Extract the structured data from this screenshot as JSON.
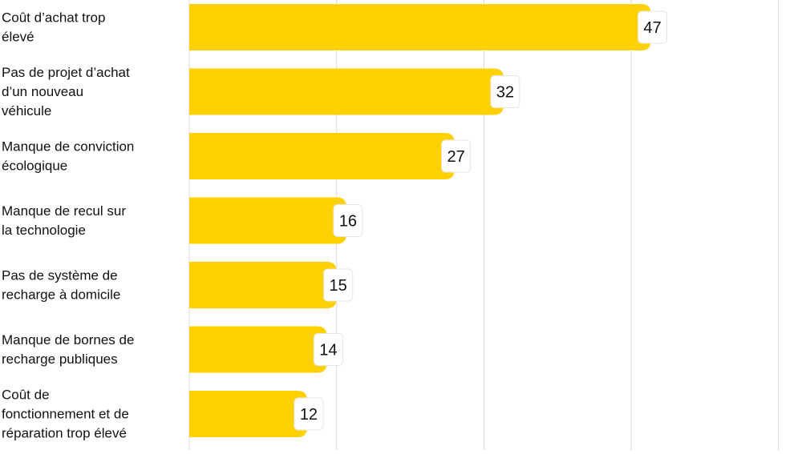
{
  "chart_data": {
    "type": "bar",
    "orientation": "horizontal",
    "categories": [
      [
        "Coût d’achat trop",
        "élevé"
      ],
      [
        "Pas de projet d’achat",
        "d’un nouveau",
        "véhicule"
      ],
      [
        "Manque de conviction",
        "écologique"
      ],
      [
        "Manque de recul sur",
        "la technologie"
      ],
      [
        "Pas de système de",
        "recharge à domicile"
      ],
      [
        "Manque de bornes de",
        "recharge publiques"
      ],
      [
        "Coût de",
        "fonctionnement et de",
        "réparation trop élevé"
      ]
    ],
    "values": [
      47,
      32,
      27,
      16,
      15,
      14,
      12
    ],
    "xlim": [
      0,
      60
    ],
    "grid": true,
    "title": "",
    "xlabel": "",
    "ylabel": "",
    "colors": {
      "bar": "#FFD100",
      "grid": "#d9d9d9",
      "label_text": "#111111",
      "value_box": "#ffffff"
    }
  }
}
